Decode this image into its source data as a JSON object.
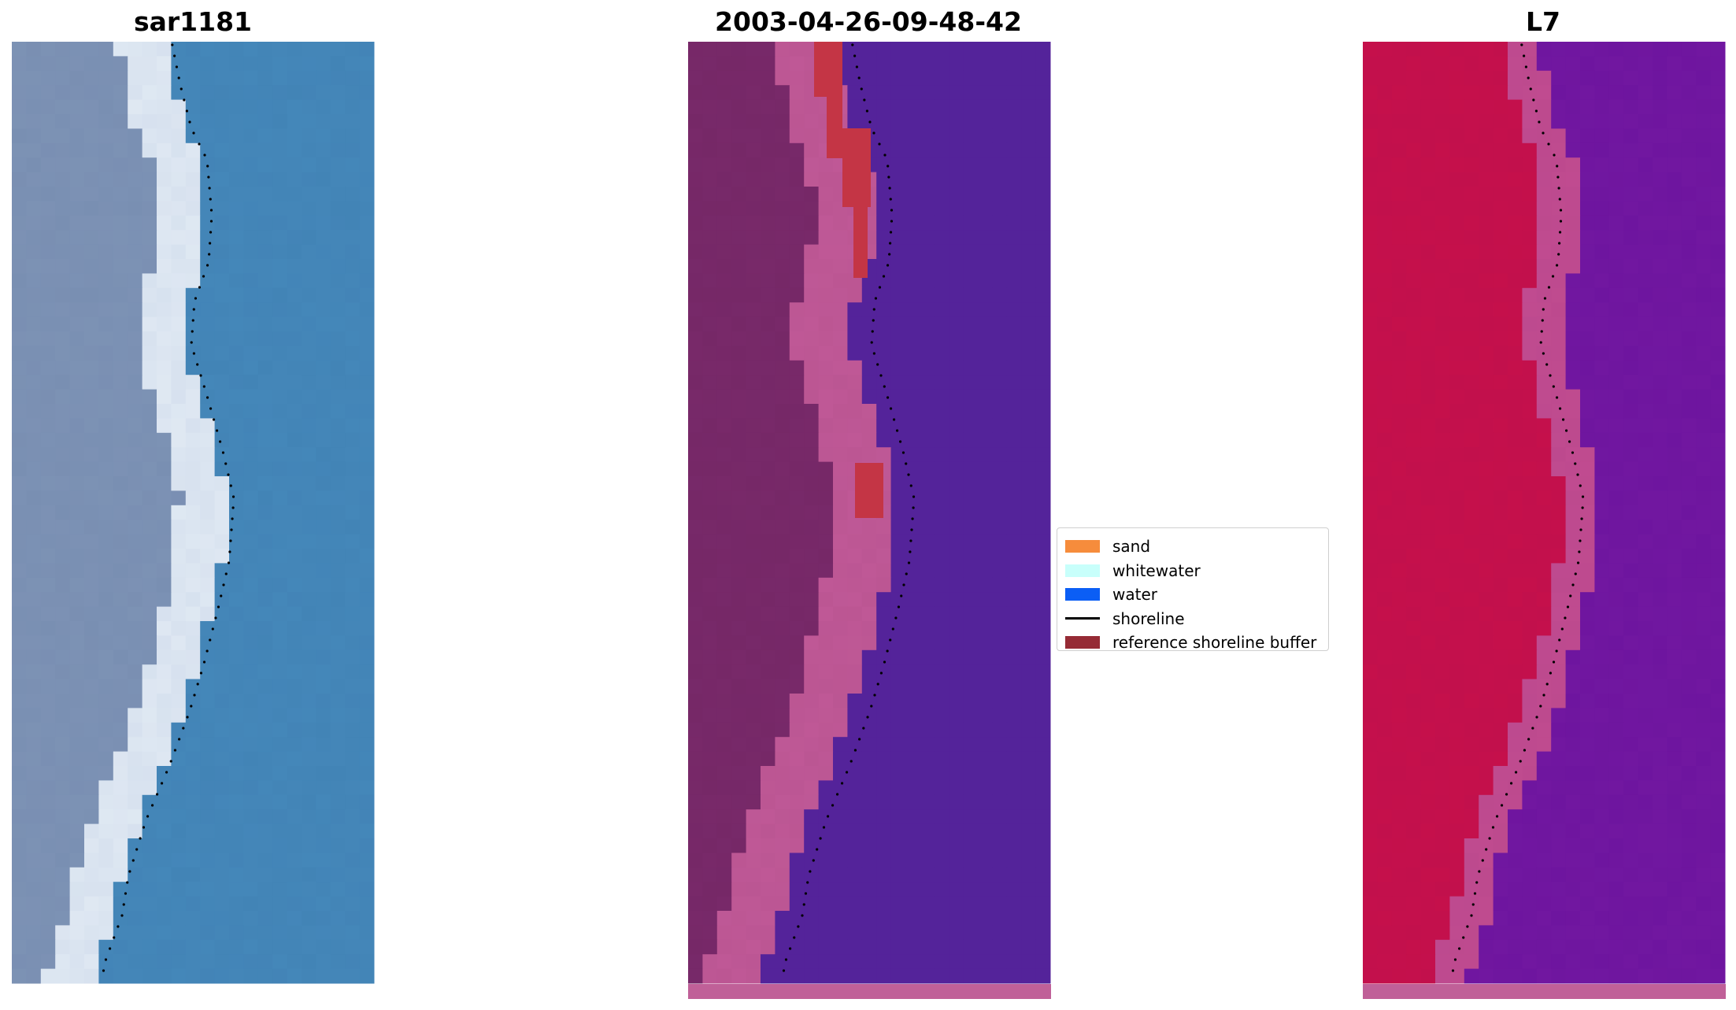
{
  "panels": [
    {
      "title": "sar1181",
      "kind": "rgb"
    },
    {
      "title": "2003-04-26-09-48-42",
      "kind": "classified"
    },
    {
      "title": "L7",
      "kind": "mndwi"
    }
  ],
  "legend": {
    "items": [
      {
        "label": "sand",
        "color": "#f68c3c",
        "type": "patch"
      },
      {
        "label": "whitewater",
        "color": "#c8fffb",
        "type": "patch"
      },
      {
        "label": "water",
        "color": "#0b5ef5",
        "type": "patch"
      },
      {
        "label": "shoreline",
        "color": "#000000",
        "type": "line"
      },
      {
        "label": "reference shoreline buffer",
        "color": "#962b35",
        "type": "patch"
      }
    ]
  },
  "colors": {
    "rgb_water": "#3f7fb2",
    "rgb_land": "#8095b7",
    "rgb_sand": "#e6eef6",
    "class_water": "#54239a",
    "class_land": "#7a2a6c",
    "class_sand": "#c35b9a",
    "class_buffer": "#c43545",
    "mndwi_land": "#c80f4a",
    "mndwi_water": "#6a129c",
    "mndwi_edge": "#c34d91"
  }
}
